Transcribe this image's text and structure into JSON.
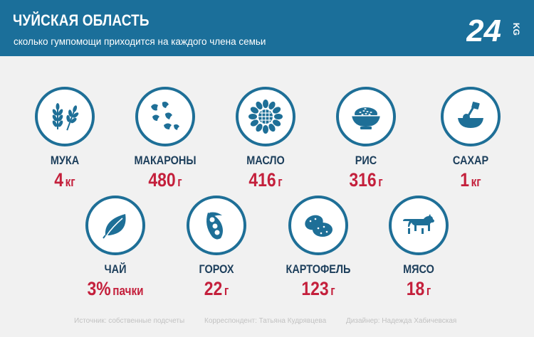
{
  "header": {
    "title": "ЧУЙСКАЯ ОБЛАСТЬ",
    "subtitle": "сколько гумпомощи приходится на каждого члена семьи",
    "logo_number": "24",
    "logo_suffix": "KG"
  },
  "colors": {
    "header_bg": "#1b6f9a",
    "accent_red": "#c4203c",
    "icon_blue": "#1e6f97",
    "label_dark": "#1c3e5b"
  },
  "items": [
    {
      "icon": "wheat-icon",
      "name": "МУКА",
      "value": "4",
      "unit": "кг"
    },
    {
      "icon": "pasta-icon",
      "name": "МАКАРОНЫ",
      "value": "480",
      "unit": "г"
    },
    {
      "icon": "sunflower-icon",
      "name": "МАСЛО",
      "value": "416",
      "unit": "г"
    },
    {
      "icon": "rice-bowl-icon",
      "name": "РИС",
      "value": "316",
      "unit": "г"
    },
    {
      "icon": "sugar-bowl-icon",
      "name": "САХАР",
      "value": "1",
      "unit": "кг"
    },
    {
      "icon": "tea-leaf-icon",
      "name": "ЧАЙ",
      "value": "3%",
      "unit": "пачки"
    },
    {
      "icon": "pea-pod-icon",
      "name": "ГОРОХ",
      "value": "22",
      "unit": "г"
    },
    {
      "icon": "potato-icon",
      "name": "КАРТОФЕЛЬ",
      "value": "123",
      "unit": "г"
    },
    {
      "icon": "cow-icon",
      "name": "МЯСО",
      "value": "18",
      "unit": "г"
    }
  ],
  "footer": {
    "source": "Источник: собственные подсчеты",
    "correspondent": "Корреспондент: Татьяна Кудрявцева",
    "designer": "Дизайнер: Надежда Хабичевская"
  }
}
